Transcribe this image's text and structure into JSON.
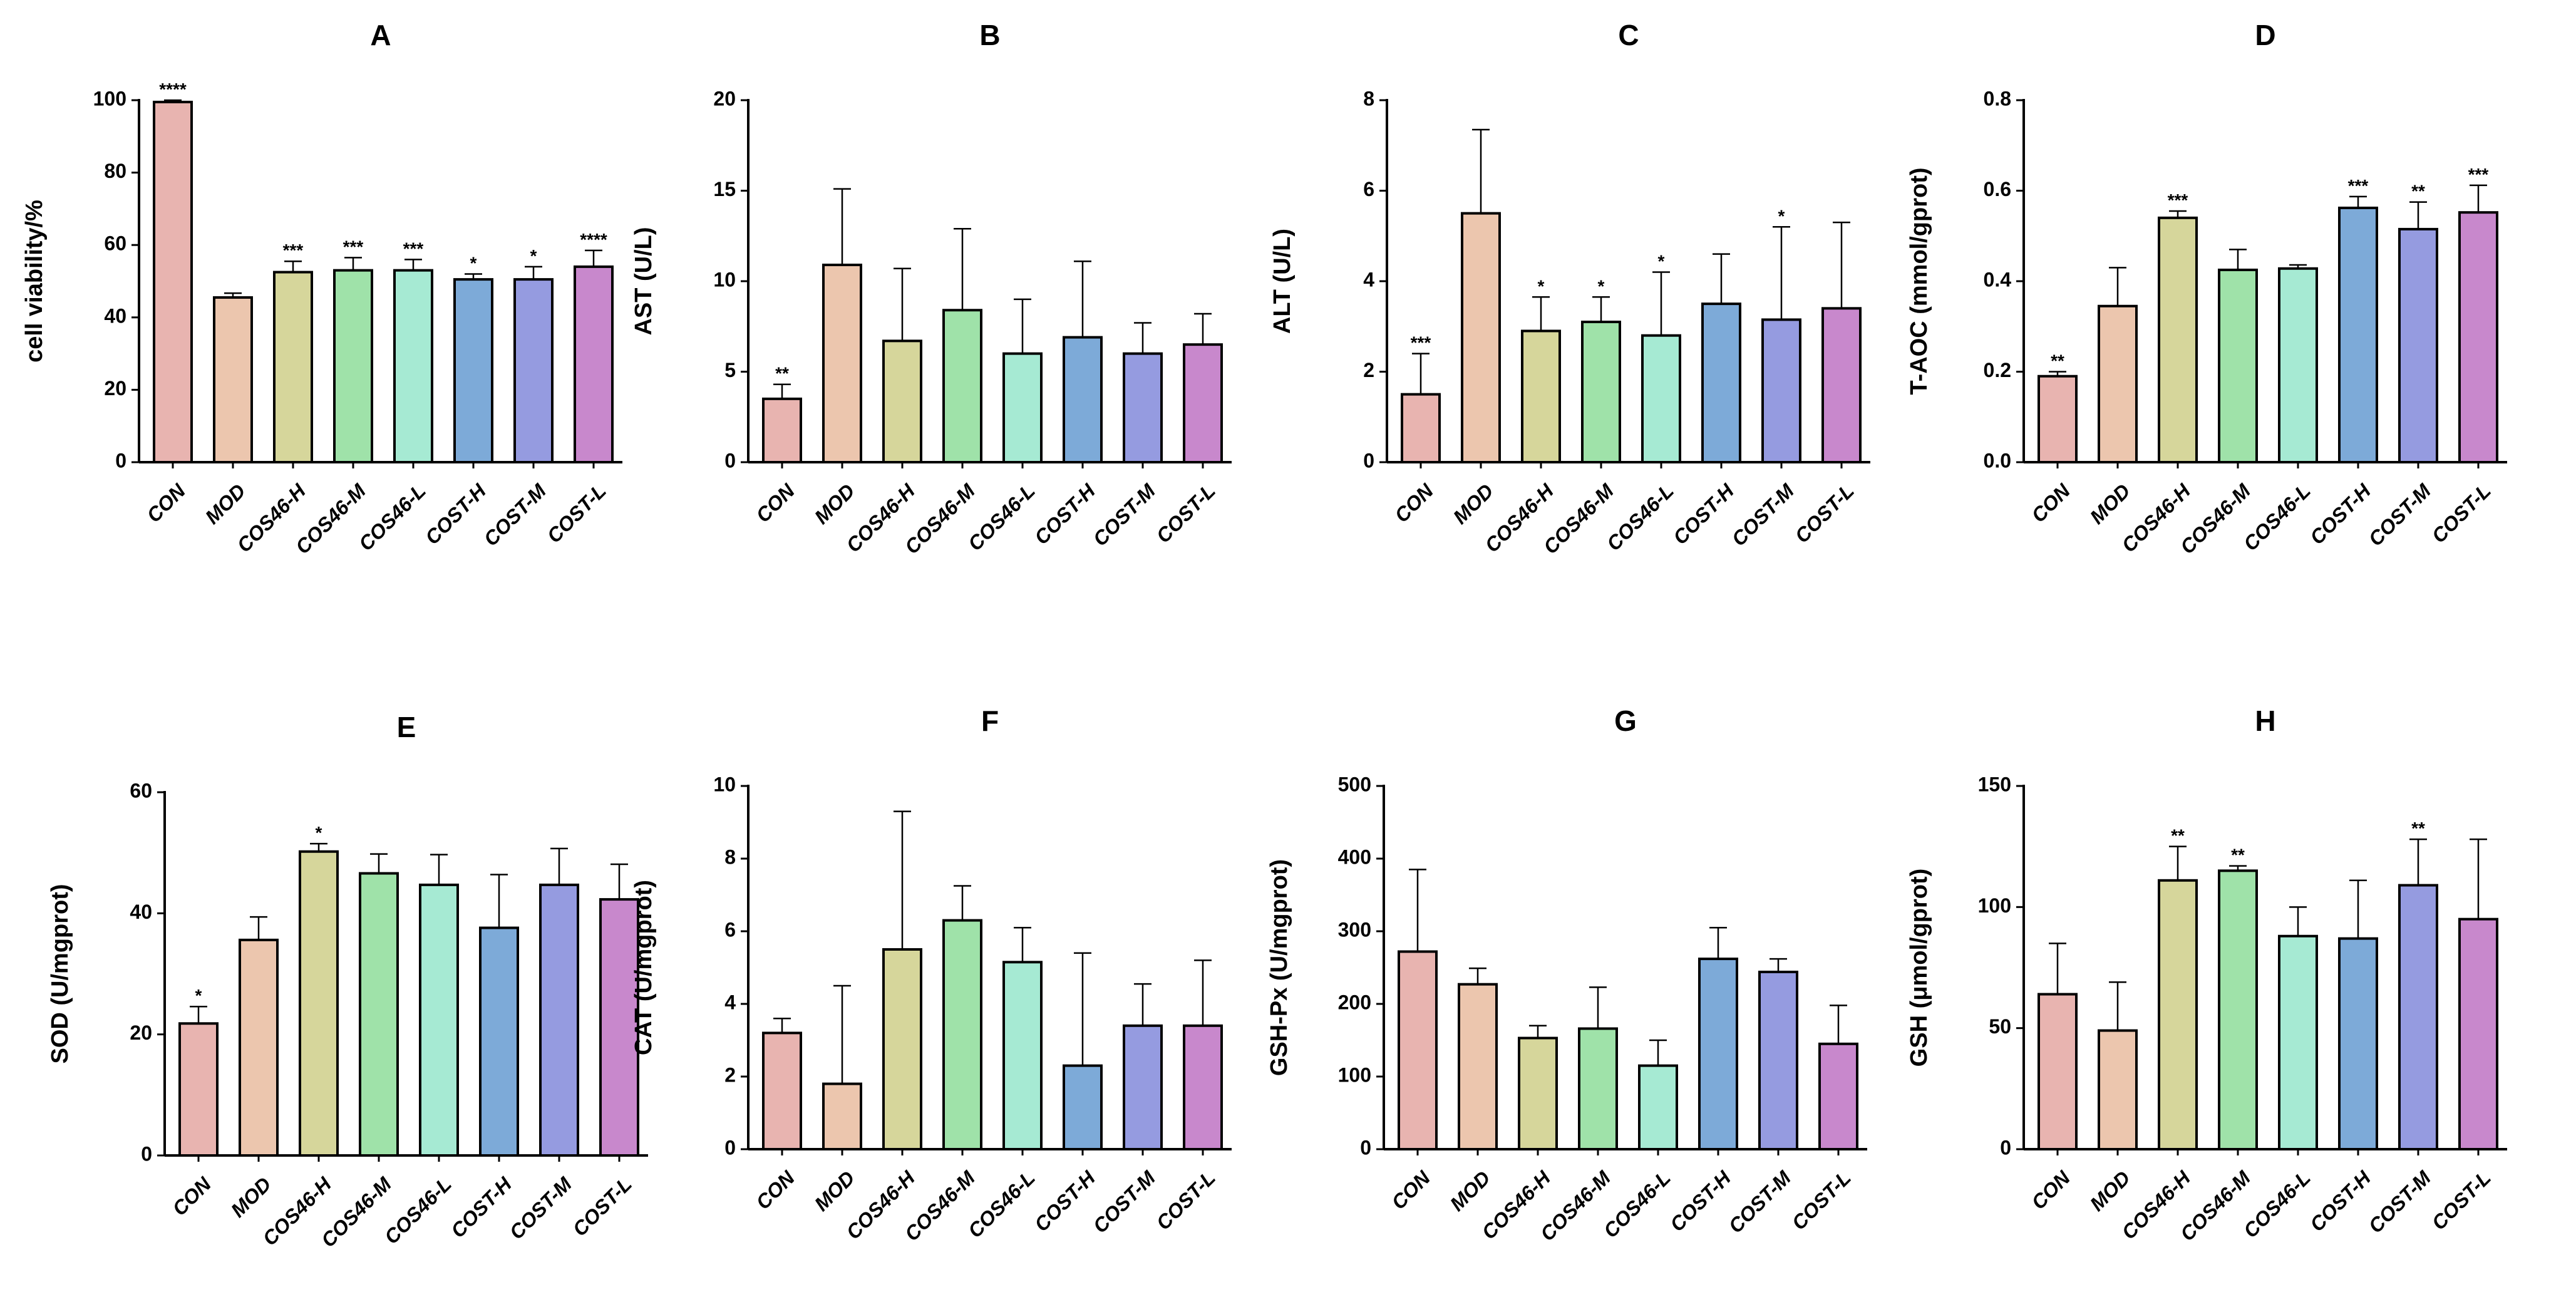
{
  "figure": {
    "colors": [
      "#e8b4b0",
      "#ecc6ae",
      "#d6d69b",
      "#9fe2a9",
      "#a6ead3",
      "#7daad8",
      "#959be0",
      "#c888cc"
    ]
  },
  "chart_data": [
    {
      "type": "bar",
      "panel": "A",
      "title": "A",
      "ylabel": "cell viability/%",
      "ylim": [
        0,
        100
      ],
      "yticks": [
        "0",
        "20",
        "40",
        "60",
        "80",
        "100"
      ],
      "categories": [
        "CON",
        "MOD",
        "COS46-H",
        "COS46-M",
        "COS46-L",
        "COST-H",
        "COST-M",
        "COST-L"
      ],
      "values": [
        99.5,
        45.5,
        52.5,
        53,
        53,
        50.5,
        50.5,
        54
      ],
      "errors": [
        0.5,
        1.2,
        3,
        3.5,
        3,
        1.5,
        3.5,
        4.5
      ],
      "significance": [
        "****",
        "",
        "***",
        "***",
        "***",
        "*",
        "*",
        "****"
      ]
    },
    {
      "type": "bar",
      "panel": "B",
      "title": "B",
      "ylabel": "AST (U/L)",
      "ylim": [
        0,
        20
      ],
      "yticks": [
        "0",
        "5",
        "10",
        "15",
        "20"
      ],
      "categories": [
        "CON",
        "MOD",
        "COS46-H",
        "COS46-M",
        "COS46-L",
        "COST-H",
        "COST-M",
        "COST-L"
      ],
      "values": [
        3.5,
        10.9,
        6.7,
        8.4,
        6,
        6.9,
        6,
        6.5
      ],
      "errors": [
        0.8,
        4.2,
        4,
        4.5,
        3,
        4.2,
        1.7,
        1.7
      ],
      "significance": [
        "**",
        "",
        "",
        "",
        "",
        "",
        "",
        ""
      ]
    },
    {
      "type": "bar",
      "panel": "C",
      "title": "C",
      "ylabel": "ALT (U/L)",
      "ylim": [
        0,
        8
      ],
      "yticks": [
        "0",
        "2",
        "4",
        "6",
        "8"
      ],
      "categories": [
        "CON",
        "MOD",
        "COS46-H",
        "COS46-M",
        "COS46-L",
        "COST-H",
        "COST-M",
        "COST-L"
      ],
      "values": [
        1.5,
        5.5,
        2.9,
        3.1,
        2.8,
        3.5,
        3.15,
        3.4
      ],
      "errors": [
        0.9,
        1.85,
        0.75,
        0.55,
        1.4,
        1.1,
        2.05,
        1.9
      ],
      "significance": [
        "***",
        "",
        "*",
        "*",
        "*",
        "",
        "*",
        ""
      ]
    },
    {
      "type": "bar",
      "panel": "D",
      "title": "D",
      "ylabel": "T-AOC (mmol/gprot)",
      "ylim": [
        0,
        0.8
      ],
      "yticks": [
        "0.0",
        "0.2",
        "0.4",
        "0.6",
        "0.8"
      ],
      "categories": [
        "CON",
        "MOD",
        "COS46-H",
        "COS46-M",
        "COS46-L",
        "COST-H",
        "COST-M",
        "COST-L"
      ],
      "values": [
        0.19,
        0.345,
        0.54,
        0.425,
        0.428,
        0.562,
        0.515,
        0.552
      ],
      "errors": [
        0.01,
        0.085,
        0.015,
        0.045,
        0.008,
        0.025,
        0.06,
        0.06
      ],
      "significance": [
        "**",
        "",
        "***",
        "",
        "",
        "***",
        "**",
        "***"
      ]
    },
    {
      "type": "bar",
      "panel": "E",
      "title": "E",
      "ylabel": "SOD (U/mgprot)",
      "ylim": [
        0,
        60
      ],
      "yticks": [
        "0",
        "20",
        "40",
        "60"
      ],
      "categories": [
        "CON",
        "MOD",
        "COS46-H",
        "COS46-M",
        "COS46-L",
        "COST-H",
        "COST-M",
        "COST-L"
      ],
      "values": [
        21.8,
        35.6,
        50.2,
        46.6,
        44.7,
        37.6,
        44.7,
        42.3
      ],
      "errors": [
        2.8,
        3.8,
        1.3,
        3.2,
        5,
        8.8,
        6,
        5.8
      ],
      "significance": [
        "*",
        "",
        "*",
        "",
        "",
        "",
        "",
        ""
      ]
    },
    {
      "type": "bar",
      "panel": "F",
      "title": "F",
      "ylabel": "CAT (U/mgprot)",
      "ylim": [
        0,
        10
      ],
      "yticks": [
        "0",
        "2",
        "4",
        "6",
        "8",
        "10"
      ],
      "categories": [
        "CON",
        "MOD",
        "COS46-H",
        "COS46-M",
        "COS46-L",
        "COST-H",
        "COST-M",
        "COST-L"
      ],
      "values": [
        3.2,
        1.8,
        5.5,
        6.3,
        5.15,
        2.3,
        3.4,
        3.4
      ],
      "errors": [
        0.4,
        2.7,
        3.8,
        0.95,
        0.95,
        3.1,
        1.15,
        1.8
      ],
      "significance": [
        "",
        "",
        "",
        "",
        "",
        "",
        "",
        ""
      ]
    },
    {
      "type": "bar",
      "panel": "G",
      "title": "G",
      "ylabel": "GSH-Px (U/mgprot)",
      "ylim": [
        0,
        500
      ],
      "yticks": [
        "0",
        "100",
        "200",
        "300",
        "400",
        "500"
      ],
      "categories": [
        "CON",
        "MOD",
        "COS46-H",
        "COS46-M",
        "COS46-L",
        "COST-H",
        "COST-M",
        "COST-L"
      ],
      "values": [
        272,
        227,
        153,
        166,
        115,
        262,
        244,
        145
      ],
      "errors": [
        113,
        22,
        17,
        57,
        35,
        43,
        18,
        53
      ],
      "significance": [
        "",
        "",
        "",
        "",
        "",
        "",
        "",
        ""
      ]
    },
    {
      "type": "bar",
      "panel": "H",
      "title": "H",
      "ylabel": "GSH (μmol/gprot)",
      "ylim": [
        0,
        150
      ],
      "yticks": [
        "0",
        "50",
        "100",
        "150"
      ],
      "categories": [
        "CON",
        "MOD",
        "COS46-H",
        "COS46-M",
        "COS46-L",
        "COST-H",
        "COST-M",
        "COST-L"
      ],
      "values": [
        64,
        49,
        111,
        115,
        88,
        87,
        109,
        95
      ],
      "errors": [
        21,
        20,
        14,
        2,
        12,
        24,
        19,
        33
      ],
      "significance": [
        "",
        "",
        "**",
        "**",
        "",
        "",
        "**",
        ""
      ]
    }
  ]
}
